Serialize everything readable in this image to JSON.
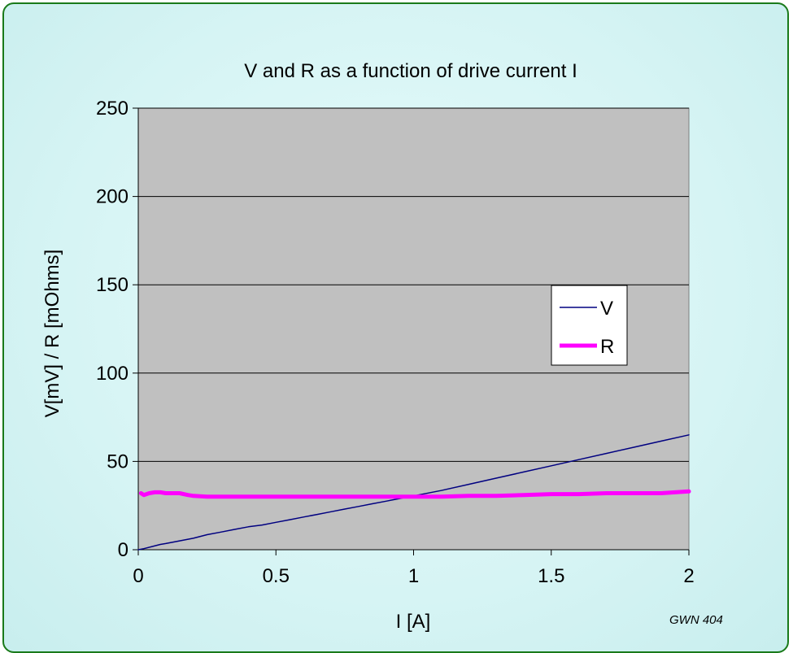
{
  "chart_data": {
    "type": "line",
    "title": "V and R as a function of drive current I",
    "xlabel": "I [A]",
    "ylabel": "V[mV] / R [mOhms]",
    "xlim": [
      0,
      2
    ],
    "ylim": [
      0,
      250
    ],
    "x_ticks": [
      "0",
      "0.5",
      "1",
      "1.5",
      "2"
    ],
    "y_ticks": [
      "0",
      "50",
      "100",
      "150",
      "200",
      "250"
    ],
    "grid": "horizontal",
    "legend_placement": "right",
    "plot_background": "#C0C0C0",
    "series": [
      {
        "name": "V",
        "color": "#000080",
        "x": [
          0,
          0.02,
          0.05,
          0.08,
          0.1,
          0.15,
          0.2,
          0.25,
          0.3,
          0.35,
          0.4,
          0.45,
          0.5,
          0.55,
          0.6,
          0.65,
          0.7,
          0.75,
          0.8,
          0.85,
          0.9,
          0.95,
          1.0,
          1.1,
          1.2,
          1.3,
          1.4,
          1.5,
          1.6,
          1.7,
          1.8,
          1.9,
          2.0
        ],
        "y": [
          0,
          0.6,
          1.8,
          3,
          3.5,
          5,
          6.5,
          8.5,
          10,
          11.5,
          13,
          14,
          15.5,
          17,
          18.5,
          20,
          21.5,
          23,
          24.5,
          26,
          27.5,
          29,
          30.5,
          33.5,
          37,
          40.5,
          44,
          47.5,
          51,
          54.5,
          58,
          61.5,
          65
        ]
      },
      {
        "name": "R",
        "color": "#FF00FF",
        "x": [
          0.01,
          0.02,
          0.04,
          0.06,
          0.08,
          0.1,
          0.12,
          0.15,
          0.18,
          0.2,
          0.25,
          0.3,
          0.4,
          0.5,
          0.6,
          0.7,
          0.8,
          0.9,
          1.0,
          1.1,
          1.2,
          1.3,
          1.4,
          1.5,
          1.6,
          1.7,
          1.8,
          1.9,
          2.0
        ],
        "y": [
          32,
          31,
          32,
          32.5,
          32.5,
          32,
          32,
          32,
          31,
          30.5,
          30,
          30,
          30,
          30,
          30,
          30,
          30,
          30,
          30,
          30,
          30.5,
          30.5,
          31,
          31.5,
          31.5,
          32,
          32,
          32,
          33
        ]
      }
    ]
  },
  "credit": "GWN 404"
}
